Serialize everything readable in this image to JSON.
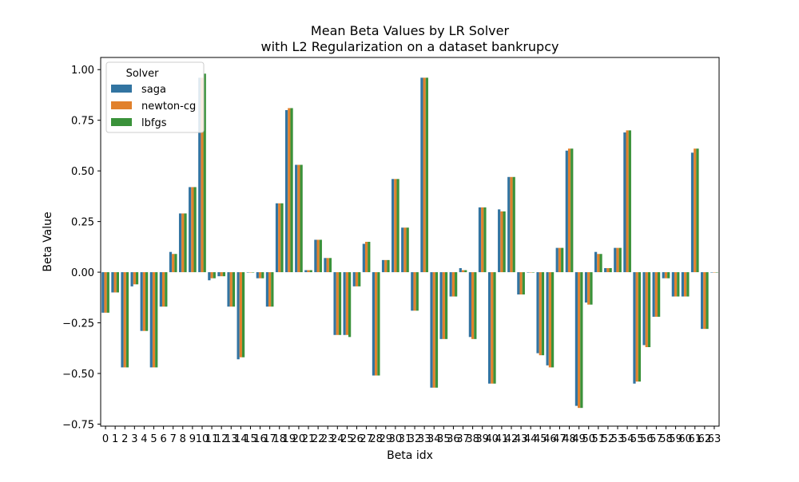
{
  "chart_data": {
    "type": "bar",
    "title": "Mean Beta Values by LR Solver",
    "subtitle": "with L2 Regularization on a dataset bankrupcy",
    "xlabel": "Beta idx",
    "ylabel": "Beta Value",
    "ylim": [
      -0.76,
      1.06
    ],
    "yticks": [
      -0.75,
      -0.5,
      -0.25,
      0.0,
      0.25,
      0.5,
      0.75,
      1.0
    ],
    "ytick_labels": [
      "−0.75",
      "−0.50",
      "−0.25",
      "0.00",
      "0.25",
      "0.50",
      "0.75",
      "1.00"
    ],
    "grid": false,
    "legend": {
      "title": "Solver",
      "position": "top-left"
    },
    "categories": [
      "0",
      "1",
      "2",
      "3",
      "4",
      "5",
      "6",
      "7",
      "8",
      "9",
      "10",
      "11",
      "12",
      "13",
      "14",
      "15",
      "16",
      "17",
      "18",
      "19",
      "20",
      "21",
      "22",
      "23",
      "24",
      "25",
      "26",
      "27",
      "28",
      "29",
      "30",
      "31",
      "32",
      "33",
      "34",
      "35",
      "36",
      "37",
      "38",
      "39",
      "40",
      "41",
      "42",
      "43",
      "44",
      "45",
      "46",
      "47",
      "48",
      "49",
      "50",
      "51",
      "52",
      "53",
      "54",
      "55",
      "56",
      "57",
      "58",
      "59",
      "60",
      "61",
      "62",
      "63"
    ],
    "series": [
      {
        "name": "saga",
        "color": "#3274a1",
        "values": [
          -0.2,
          -0.1,
          -0.47,
          -0.07,
          -0.29,
          -0.47,
          -0.17,
          0.1,
          0.29,
          0.42,
          0.96,
          -0.04,
          -0.02,
          -0.17,
          -0.43,
          0.0,
          -0.03,
          -0.17,
          0.34,
          0.8,
          0.53,
          0.01,
          0.16,
          0.07,
          -0.31,
          -0.31,
          -0.07,
          0.14,
          -0.51,
          0.06,
          0.46,
          0.22,
          -0.19,
          0.96,
          -0.57,
          -0.33,
          -0.12,
          0.02,
          -0.32,
          0.32,
          -0.55,
          0.31,
          0.47,
          -0.11,
          0.0,
          -0.4,
          -0.46,
          0.12,
          0.6,
          -0.66,
          -0.15,
          0.1,
          0.02,
          0.12,
          0.69,
          -0.55,
          -0.36,
          -0.22,
          -0.03,
          -0.12,
          -0.12,
          0.59,
          -0.28,
          0.0
        ]
      },
      {
        "name": "newton-cg",
        "color": "#e1812c",
        "values": [
          -0.2,
          -0.1,
          -0.47,
          -0.06,
          -0.29,
          -0.47,
          -0.17,
          0.09,
          0.29,
          0.42,
          0.96,
          -0.03,
          -0.02,
          -0.17,
          -0.42,
          0.0,
          -0.03,
          -0.17,
          0.34,
          0.81,
          0.53,
          0.01,
          0.16,
          0.07,
          -0.31,
          -0.31,
          -0.07,
          0.15,
          -0.51,
          0.06,
          0.46,
          0.22,
          -0.19,
          0.96,
          -0.57,
          -0.33,
          -0.12,
          0.01,
          -0.33,
          0.32,
          -0.55,
          0.3,
          0.47,
          -0.11,
          0.0,
          -0.41,
          -0.47,
          0.12,
          0.61,
          -0.67,
          -0.16,
          0.09,
          0.02,
          0.12,
          0.7,
          -0.54,
          -0.37,
          -0.22,
          -0.03,
          -0.12,
          -0.12,
          0.61,
          -0.28,
          0.0
        ]
      },
      {
        "name": "lbfgs",
        "color": "#3a923a",
        "values": [
          -0.2,
          -0.1,
          -0.47,
          -0.06,
          -0.29,
          -0.47,
          -0.17,
          0.09,
          0.29,
          0.42,
          0.98,
          -0.03,
          -0.02,
          -0.17,
          -0.42,
          0.0,
          -0.03,
          -0.17,
          0.34,
          0.81,
          0.53,
          0.01,
          0.16,
          0.07,
          -0.31,
          -0.32,
          -0.07,
          0.15,
          -0.51,
          0.06,
          0.46,
          0.22,
          -0.19,
          0.96,
          -0.57,
          -0.33,
          -0.12,
          0.01,
          -0.33,
          0.32,
          -0.55,
          0.3,
          0.47,
          -0.11,
          0.0,
          -0.41,
          -0.47,
          0.12,
          0.61,
          -0.67,
          -0.16,
          0.09,
          0.02,
          0.12,
          0.7,
          -0.54,
          -0.37,
          -0.22,
          -0.03,
          -0.12,
          -0.12,
          0.61,
          -0.28,
          0.0
        ]
      }
    ]
  }
}
